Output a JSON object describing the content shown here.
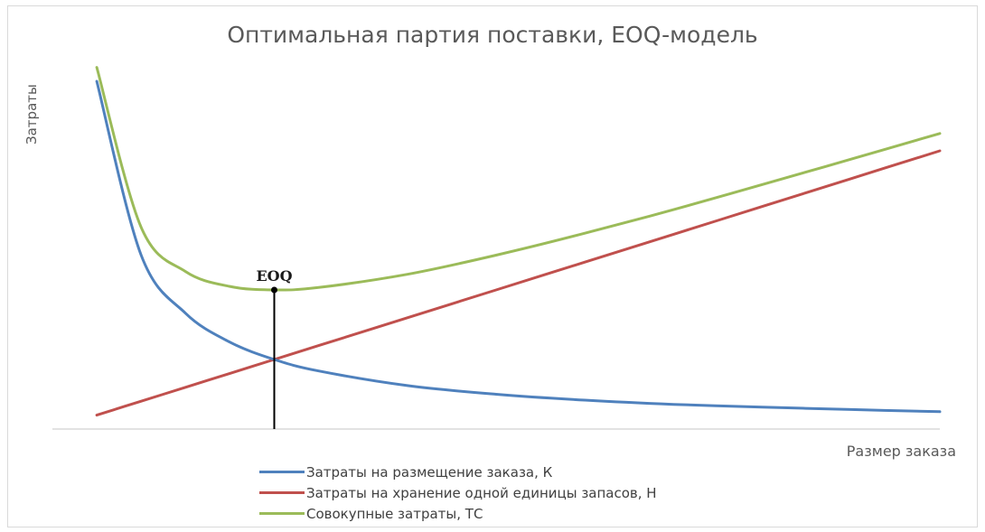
{
  "chart_data": {
    "type": "line",
    "title": "Оптимальная партия поставки, EOQ-модель",
    "xlabel": "Размер заказа",
    "ylabel": "Затраты",
    "xlim": [
      0,
      10
    ],
    "ylim": [
      0,
      10
    ],
    "grid": false,
    "legend": "bottom",
    "x": [
      0.5,
      1,
      1.5,
      2,
      2.5,
      3,
      4,
      5,
      6,
      7,
      8,
      9,
      10
    ],
    "series": [
      {
        "name": "Затраты на размещение заказа, К",
        "color": "#4f81bd",
        "values": [
          10.0,
          5.0,
          3.33,
          2.5,
          2.0,
          1.67,
          1.25,
          1.0,
          0.83,
          0.71,
          0.63,
          0.56,
          0.5
        ]
      },
      {
        "name": "Затраты на хранение одной единицы запасов, Н",
        "color": "#c0504d",
        "values": [
          0.4,
          0.8,
          1.2,
          1.6,
          2.0,
          2.4,
          3.2,
          4.0,
          4.8,
          5.6,
          6.4,
          7.2,
          8.0
        ]
      },
      {
        "name": "Совокупные затраты, ТС",
        "color": "#9bbb59",
        "values": [
          10.4,
          5.8,
          4.53,
          4.1,
          4.0,
          4.07,
          4.45,
          5.0,
          5.63,
          6.31,
          7.03,
          7.76,
          8.5
        ]
      }
    ],
    "annotations": [
      {
        "label": "EOQ",
        "x": 2.5
      }
    ]
  }
}
